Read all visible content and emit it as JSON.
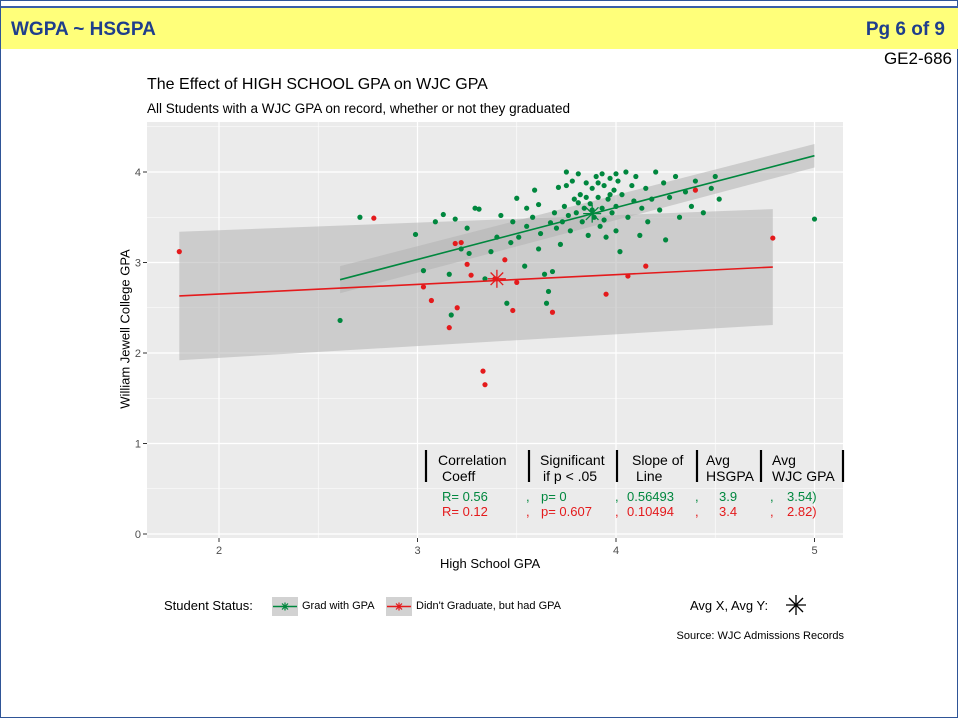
{
  "header": {
    "title": "WGPA ~ HSGPA",
    "page": "Pg 6 of 9",
    "code": "GE2-686"
  },
  "colors": {
    "header_bg": "#ffff7a",
    "header_text": "#1f3e8c",
    "grad": "#00873e",
    "not_grad": "#e41a1c",
    "panel": "#ebebeb",
    "ribbon": "#b3b3b3"
  },
  "chart_data": {
    "type": "scatter",
    "title": "The Effect of HIGH SCHOOL GPA on WJC GPA",
    "subtitle": "All Students with a WJC GPA on record, whether or not they graduated",
    "xlabel": "High School GPA",
    "ylabel": "William Jewell College GPA",
    "xlim": [
      1.5,
      5.15
    ],
    "ylim": [
      -0.05,
      4.6
    ],
    "xticks": [
      2,
      3,
      4,
      5
    ],
    "yticks": [
      0,
      1,
      2,
      3,
      4
    ],
    "grid": true,
    "legend": {
      "title": "Student Status:",
      "position": "bottom",
      "avg_label": "Avg X, Avg Y:"
    },
    "source": "Source: WJC Admissions Records",
    "series": [
      {
        "name": "Grad with GPA",
        "color": "#00873e",
        "points": [
          [
            2.61,
            2.36
          ],
          [
            2.71,
            3.5
          ],
          [
            2.99,
            3.31
          ],
          [
            3.03,
            2.91
          ],
          [
            3.09,
            3.45
          ],
          [
            3.13,
            3.53
          ],
          [
            3.16,
            2.87
          ],
          [
            3.19,
            3.48
          ],
          [
            3.22,
            3.15
          ],
          [
            3.25,
            3.38
          ],
          [
            3.29,
            3.6
          ],
          [
            3.31,
            3.59
          ],
          [
            3.34,
            2.82
          ],
          [
            3.37,
            3.12
          ],
          [
            3.42,
            3.52
          ],
          [
            3.45,
            2.55
          ],
          [
            3.47,
            3.22
          ],
          [
            3.5,
            3.71
          ],
          [
            3.51,
            3.28
          ],
          [
            3.54,
            2.96
          ],
          [
            3.55,
            3.4
          ],
          [
            3.58,
            3.5
          ],
          [
            3.61,
            3.64
          ],
          [
            3.62,
            3.32
          ],
          [
            3.64,
            2.87
          ],
          [
            3.65,
            2.55
          ],
          [
            3.67,
            3.44
          ],
          [
            3.68,
            2.9
          ],
          [
            3.69,
            3.55
          ],
          [
            3.71,
            3.83
          ],
          [
            3.72,
            3.2
          ],
          [
            3.73,
            3.45
          ],
          [
            3.74,
            3.62
          ],
          [
            3.75,
            4.0
          ],
          [
            3.76,
            3.52
          ],
          [
            3.77,
            3.35
          ],
          [
            3.78,
            3.9
          ],
          [
            3.79,
            3.7
          ],
          [
            3.8,
            3.55
          ],
          [
            3.81,
            3.98
          ],
          [
            3.82,
            3.75
          ],
          [
            3.83,
            3.45
          ],
          [
            3.84,
            3.6
          ],
          [
            3.85,
            3.88
          ],
          [
            3.86,
            3.3
          ],
          [
            3.87,
            3.65
          ],
          [
            3.88,
            3.82
          ],
          [
            3.89,
            3.5
          ],
          [
            3.9,
            3.95
          ],
          [
            3.91,
            3.72
          ],
          [
            3.92,
            3.4
          ],
          [
            3.93,
            3.6
          ],
          [
            3.94,
            3.85
          ],
          [
            3.95,
            3.28
          ],
          [
            3.96,
            3.7
          ],
          [
            3.97,
            3.93
          ],
          [
            3.98,
            3.55
          ],
          [
            3.99,
            3.8
          ],
          [
            4.0,
            3.35
          ],
          [
            4.0,
            3.62
          ],
          [
            4.0,
            3.98
          ],
          [
            4.02,
            3.12
          ],
          [
            4.03,
            3.75
          ],
          [
            4.05,
            4.0
          ],
          [
            4.06,
            3.5
          ],
          [
            4.08,
            3.85
          ],
          [
            4.09,
            3.68
          ],
          [
            4.1,
            3.95
          ],
          [
            4.12,
            3.3
          ],
          [
            4.13,
            3.6
          ],
          [
            4.15,
            3.82
          ],
          [
            4.16,
            3.45
          ],
          [
            4.18,
            3.7
          ],
          [
            4.2,
            4.0
          ],
          [
            4.22,
            3.58
          ],
          [
            4.24,
            3.88
          ],
          [
            4.25,
            3.25
          ],
          [
            4.27,
            3.72
          ],
          [
            4.3,
            3.95
          ],
          [
            4.32,
            3.5
          ],
          [
            4.35,
            3.78
          ],
          [
            4.38,
            3.62
          ],
          [
            4.4,
            3.9
          ],
          [
            4.44,
            3.55
          ],
          [
            4.48,
            3.82
          ],
          [
            4.5,
            3.95
          ],
          [
            4.52,
            3.7
          ],
          [
            5.0,
            3.48
          ],
          [
            3.59,
            3.8
          ],
          [
            3.81,
            3.66
          ],
          [
            3.88,
            3.58
          ],
          [
            3.94,
            3.47
          ],
          [
            4.01,
            3.9
          ],
          [
            3.93,
            3.98
          ],
          [
            3.75,
            3.85
          ],
          [
            3.7,
            3.38
          ],
          [
            3.61,
            3.15
          ],
          [
            3.55,
            3.6
          ],
          [
            3.48,
            3.45
          ],
          [
            3.4,
            3.28
          ],
          [
            3.26,
            3.1
          ],
          [
            3.17,
            2.42
          ],
          [
            3.66,
            2.68
          ],
          [
            3.85,
            3.72
          ],
          [
            3.97,
            3.75
          ],
          [
            3.91,
            3.88
          ]
        ]
      },
      {
        "name": "Didn't Graduate, but had GPA",
        "color": "#e41a1c",
        "points": [
          [
            1.8,
            3.12
          ],
          [
            2.78,
            3.49
          ],
          [
            3.03,
            2.73
          ],
          [
            3.07,
            2.58
          ],
          [
            3.16,
            2.28
          ],
          [
            3.2,
            2.5
          ],
          [
            3.22,
            3.22
          ],
          [
            3.25,
            2.98
          ],
          [
            3.27,
            2.86
          ],
          [
            3.33,
            1.8
          ],
          [
            3.34,
            1.65
          ],
          [
            3.39,
            2.82
          ],
          [
            3.44,
            3.03
          ],
          [
            3.48,
            2.47
          ],
          [
            3.68,
            2.45
          ],
          [
            3.95,
            2.65
          ],
          [
            4.06,
            2.85
          ],
          [
            4.15,
            2.96
          ],
          [
            4.4,
            3.8
          ],
          [
            4.79,
            3.27
          ],
          [
            3.19,
            3.21
          ],
          [
            3.5,
            2.78
          ]
        ]
      }
    ],
    "fits": [
      {
        "name": "Grad with GPA",
        "x": [
          2.61,
          5.0
        ],
        "y": [
          2.81,
          4.18
        ],
        "band_lower": [
          2.66,
          4.05
        ],
        "band_upper": [
          2.96,
          4.31
        ]
      },
      {
        "name": "Didn't Graduate, but had GPA",
        "x": [
          1.8,
          4.79
        ],
        "y": [
          2.63,
          2.95
        ],
        "band_lower": [
          1.92,
          2.31
        ],
        "band_upper": [
          3.34,
          3.59
        ]
      }
    ],
    "averages": [
      {
        "name": "Grad with GPA",
        "x": 3.88,
        "y": 3.54
      },
      {
        "name": "Didn't Graduate, but had GPA",
        "x": 3.4,
        "y": 2.82
      }
    ],
    "stats_table": {
      "headers": [
        [
          "Correlation",
          "Coeff"
        ],
        [
          "Significant",
          "if p < .05"
        ],
        [
          "Slope of",
          "Line"
        ],
        [
          "Avg",
          "HSGPA"
        ],
        [
          "Avg",
          "WJC GPA"
        ]
      ],
      "rows": [
        {
          "color": "#00873e",
          "cells": [
            "R= 0.56",
            ",",
            "p= 0",
            ",",
            "0.56493",
            ",",
            "3.9",
            ",",
            "3.54)"
          ]
        },
        {
          "color": "#e41a1c",
          "cells": [
            "R= 0.12",
            ",",
            "p= 0.607",
            ",",
            "0.10494",
            ",",
            "3.4",
            ",",
            "2.82)"
          ]
        }
      ]
    }
  }
}
